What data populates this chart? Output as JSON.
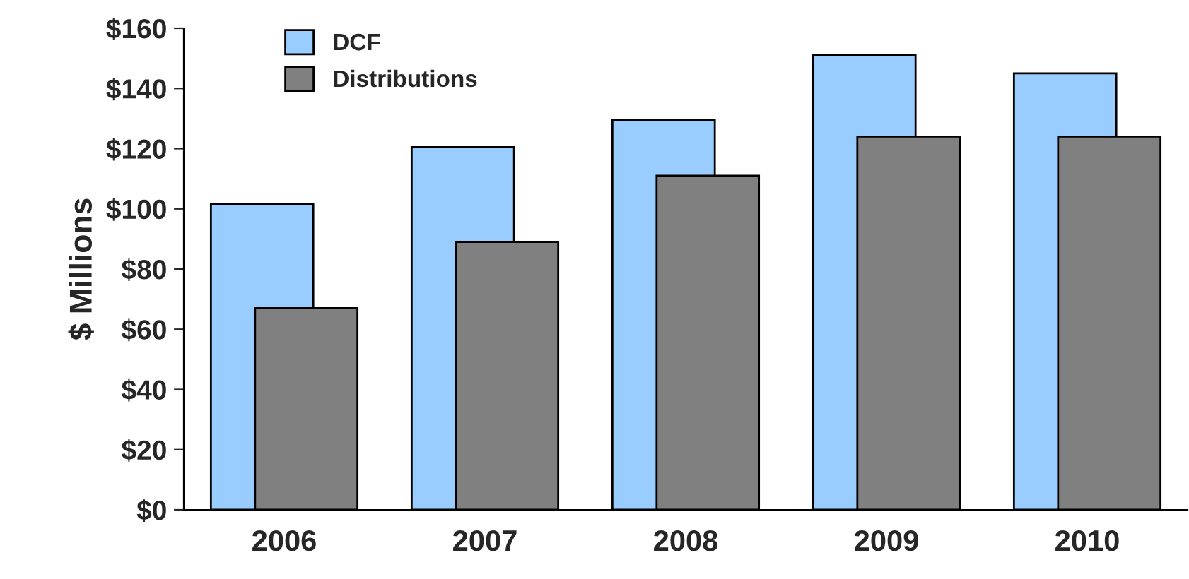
{
  "chart_data": {
    "type": "bar",
    "ylabel": "$ Millions",
    "categories": [
      "2006",
      "2007",
      "2008",
      "2009",
      "2010"
    ],
    "series": [
      {
        "name": "DCF",
        "color": "#99ccff",
        "values": [
          101.5,
          120.5,
          129.5,
          151,
          145
        ]
      },
      {
        "name": "Distributions",
        "color": "#808080",
        "values": [
          67,
          89,
          111,
          124,
          124
        ]
      }
    ],
    "ylim": [
      0,
      160
    ],
    "yticks": [
      {
        "value": 0,
        "label": "$0"
      },
      {
        "value": 20,
        "label": "$20"
      },
      {
        "value": 40,
        "label": "$40"
      },
      {
        "value": 60,
        "label": "$60"
      },
      {
        "value": 80,
        "label": "$80"
      },
      {
        "value": 100,
        "label": "$100"
      },
      {
        "value": 120,
        "label": "$120"
      },
      {
        "value": 140,
        "label": "$140"
      },
      {
        "value": 160,
        "label": "$160"
      }
    ],
    "grid": false,
    "legend": "top left"
  }
}
